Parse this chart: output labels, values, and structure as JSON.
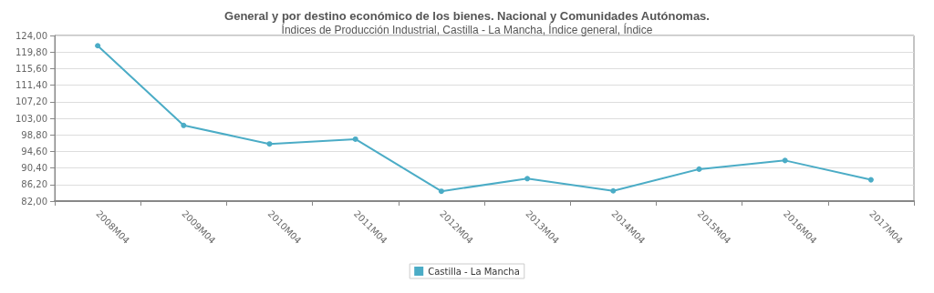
{
  "chart_data": {
    "type": "line",
    "title": "General y por destino económico de los bienes. Nacional y Comunidades Autónomas.",
    "subtitle": "Índices de Producción Industrial, Castilla - La Mancha, Índice general, Índice",
    "categories": [
      "2008M04",
      "2009M04",
      "2010M04",
      "2011M04",
      "2012M04",
      "2013M04",
      "2014M04",
      "2015M04",
      "2016M04",
      "2017M04"
    ],
    "series": [
      {
        "name": "Castilla - La Mancha",
        "color": "#4bacc6",
        "values": [
          121.4,
          101.2,
          96.5,
          97.7,
          84.5,
          87.7,
          84.6,
          90.1,
          92.3,
          87.4
        ]
      }
    ],
    "ylim": [
      82,
      124
    ],
    "yticks": [
      {
        "value": 82,
        "label": "82,00"
      },
      {
        "value": 86.2,
        "label": "86,20"
      },
      {
        "value": 90.4,
        "label": "90,40"
      },
      {
        "value": 94.6,
        "label": "94,60"
      },
      {
        "value": 98.8,
        "label": "98,80"
      },
      {
        "value": 103,
        "label": "103,00"
      },
      {
        "value": 107.2,
        "label": "107,20"
      },
      {
        "value": 111.4,
        "label": "111,40"
      },
      {
        "value": 115.6,
        "label": "115,60"
      },
      {
        "value": 119.8,
        "label": "119,80"
      },
      {
        "value": 124,
        "label": "124,00"
      }
    ],
    "grid": "y",
    "legend": "bottom",
    "marker": "circle",
    "line_style": "solid"
  }
}
